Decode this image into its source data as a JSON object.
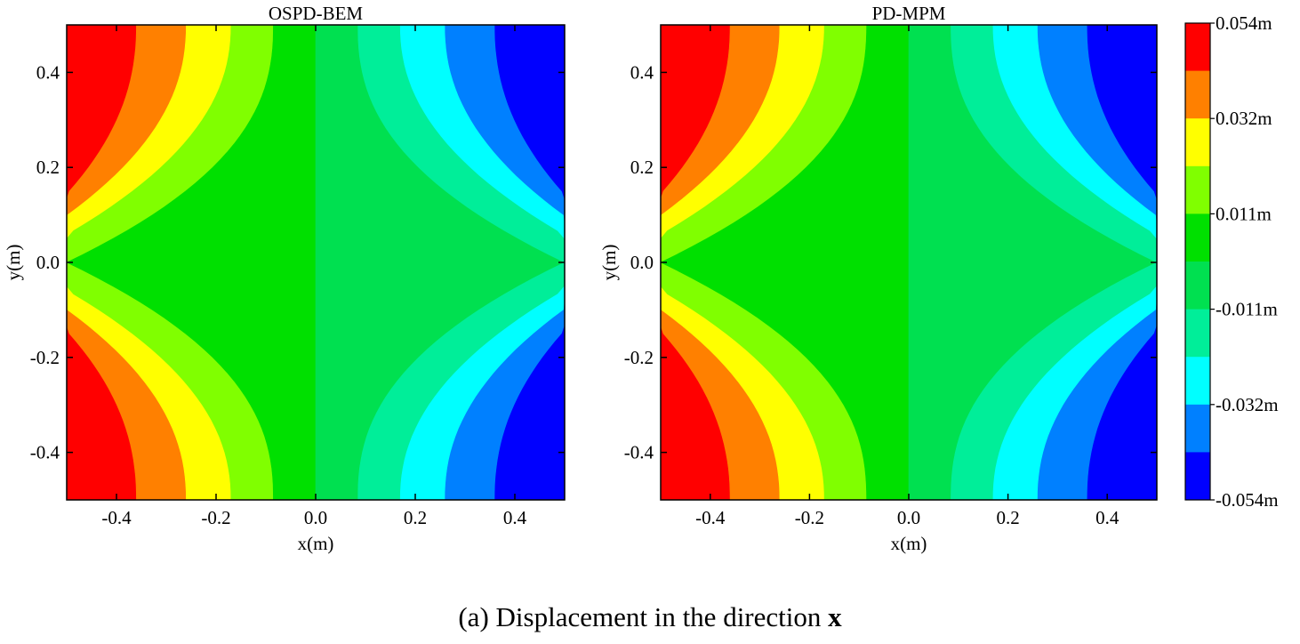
{
  "chart_data": [
    {
      "type": "heatmap",
      "subtype": "filled-contour",
      "title": "OSPD-BEM",
      "xlabel": "x(m)",
      "ylabel": "y(m)",
      "xlim": [
        -0.5,
        0.5
      ],
      "ylim": [
        -0.5,
        0.5
      ],
      "xticks": [
        "-0.4",
        "-0.2",
        "0.0",
        "0.2",
        "0.4"
      ],
      "yticks": [
        "-0.4",
        "-0.2",
        "0.0",
        "0.2",
        "0.4"
      ],
      "grid": false,
      "field": "displacement in x (m), antisymmetric in x, symmetric in y",
      "contour_boundaries_at_y_edge": [
        -0.36,
        -0.26,
        -0.17,
        -0.085,
        0.0,
        0.085,
        0.17,
        0.26,
        0.36
      ],
      "contour_boundaries_at_y_zero": [
        -0.5,
        -0.5,
        -0.5,
        -0.45,
        0.0,
        0.45,
        0.5,
        0.5,
        0.5
      ],
      "corner_values_m": {
        "top_left": 0.054,
        "top_right": -0.054,
        "bottom_left": 0.054,
        "bottom_right": -0.054
      }
    },
    {
      "type": "heatmap",
      "subtype": "filled-contour",
      "title": "PD-MPM",
      "xlabel": "x(m)",
      "ylabel": "y(m)",
      "xlim": [
        -0.5,
        0.5
      ],
      "ylim": [
        -0.5,
        0.5
      ],
      "xticks": [
        "-0.4",
        "-0.2",
        "0.0",
        "0.2",
        "0.4"
      ],
      "yticks": [
        "-0.4",
        "-0.2",
        "0.0",
        "0.2",
        "0.4"
      ],
      "grid": false,
      "field": "displacement in x (m), antisymmetric in x, symmetric in y",
      "contour_boundaries_at_y_edge": [
        -0.36,
        -0.26,
        -0.17,
        -0.085,
        0.0,
        0.085,
        0.17,
        0.26,
        0.36
      ],
      "contour_boundaries_at_y_zero": [
        -0.5,
        -0.5,
        -0.5,
        -0.45,
        0.0,
        0.45,
        0.5,
        0.5,
        0.5
      ],
      "corner_values_m": {
        "top_left": 0.054,
        "top_right": -0.054,
        "bottom_left": 0.054,
        "bottom_right": -0.054
      }
    }
  ],
  "colorbar": {
    "levels_top_to_bottom": [
      "#ff0000",
      "#ff8000",
      "#ffff00",
      "#80ff00",
      "#00e000",
      "#00e050",
      "#00ee99",
      "#00ffff",
      "#0080ff",
      "#0000ff"
    ],
    "tick_labels": [
      "0.054m",
      "0.032m",
      "0.011m",
      "-0.011m",
      "-0.032m",
      "-0.054m"
    ],
    "range_m": [
      -0.054,
      0.054
    ],
    "placement": "right"
  },
  "caption": {
    "label": "(a)",
    "text": "Displacement in the direction",
    "symbol": "x"
  }
}
